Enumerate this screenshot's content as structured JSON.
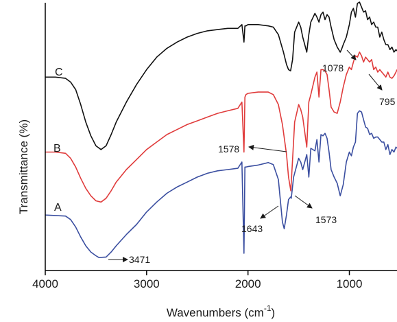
{
  "chart_data": {
    "type": "line",
    "xlabel": "Wavenumbers (cm",
    "xlabel_sup": "-1",
    "xlabel_close": ")",
    "ylabel": "Transmittance (%)",
    "xlim": [
      4000,
      530
    ],
    "x_reversed": true,
    "ylim": [
      0,
      10
    ],
    "y_units": "relative transmittance (offset traces, no y tick labels)",
    "grid": false,
    "legend": "none",
    "x_ticks": [
      4000,
      3000,
      2000,
      1000
    ],
    "x_tick_labels": [
      "4000",
      "3000",
      "2000",
      "1000"
    ],
    "series": [
      {
        "name": "A",
        "color": "#3a4ea0",
        "x": [
          4000,
          3900,
          3800,
          3750,
          3700,
          3650,
          3600,
          3550,
          3500,
          3471,
          3400,
          3350,
          3300,
          3200,
          3100,
          3000,
          2900,
          2800,
          2700,
          2600,
          2500,
          2400,
          2300,
          2200,
          2100,
          2060,
          2040,
          2030,
          2020,
          2000,
          1900,
          1800,
          1750,
          1700,
          1660,
          1643,
          1620,
          1600,
          1580,
          1573,
          1550,
          1500,
          1480,
          1460,
          1440,
          1420,
          1400,
          1380,
          1340,
          1320,
          1300,
          1280,
          1260,
          1240,
          1220,
          1200,
          1180,
          1150,
          1120,
          1090,
          1060,
          1030,
          1000,
          980,
          960,
          940,
          920,
          900,
          880,
          860,
          840,
          820,
          800,
          780,
          760,
          740,
          720,
          700,
          680,
          660,
          640,
          620,
          600,
          580,
          560,
          540,
          530
        ],
        "y": [
          1.78,
          1.76,
          1.74,
          1.6,
          1.3,
          0.9,
          0.55,
          0.3,
          0.15,
          0.08,
          0.1,
          0.3,
          0.55,
          1.0,
          1.4,
          1.9,
          2.3,
          2.65,
          2.9,
          3.1,
          3.3,
          3.45,
          3.55,
          3.6,
          3.65,
          3.9,
          0.25,
          3.7,
          3.7,
          3.72,
          3.78,
          3.88,
          3.8,
          3.2,
          1.5,
          1.23,
          1.8,
          2.4,
          2.5,
          2.45,
          3.3,
          4.05,
          3.9,
          3.6,
          3.9,
          4.2,
          3.3,
          4.45,
          4.35,
          4.8,
          3.9,
          5.0,
          4.95,
          5.05,
          4.85,
          4.3,
          3.6,
          3.3,
          3.05,
          2.55,
          3.0,
          3.9,
          4.3,
          4.15,
          4.5,
          4.7,
          5.85,
          5.95,
          5.9,
          5.6,
          5.3,
          5.25,
          5.0,
          5.05,
          4.85,
          4.9,
          4.9,
          4.8,
          4.7,
          4.7,
          4.4,
          4.6,
          4.2,
          4.4,
          4.3,
          4.5,
          4.45
        ]
      },
      {
        "name": "B",
        "color": "#e03c3c",
        "x": [
          4000,
          3900,
          3800,
          3750,
          3700,
          3650,
          3600,
          3550,
          3500,
          3450,
          3400,
          3350,
          3300,
          3200,
          3100,
          3000,
          2900,
          2800,
          2700,
          2600,
          2500,
          2400,
          2300,
          2200,
          2100,
          2060,
          2040,
          2030,
          2020,
          2000,
          1900,
          1800,
          1750,
          1700,
          1660,
          1620,
          1600,
          1578,
          1560,
          1540,
          1500,
          1480,
          1460,
          1420,
          1400,
          1380,
          1340,
          1320,
          1300,
          1280,
          1260,
          1240,
          1220,
          1200,
          1180,
          1150,
          1120,
          1090,
          1060,
          1030,
          1000,
          980,
          960,
          940,
          920,
          900,
          880,
          860,
          840,
          820,
          800,
          780,
          760,
          740,
          720,
          700,
          680,
          660,
          640,
          620,
          600,
          580,
          560,
          540,
          530
        ],
        "y": [
          4.3,
          4.3,
          4.25,
          4.05,
          3.7,
          3.25,
          2.85,
          2.55,
          2.35,
          2.3,
          2.45,
          2.75,
          3.1,
          3.6,
          4.0,
          4.4,
          4.7,
          5.0,
          5.2,
          5.4,
          5.55,
          5.7,
          5.85,
          5.95,
          6.05,
          6.3,
          4.3,
          6.5,
          6.6,
          6.65,
          6.7,
          6.7,
          6.6,
          6.2,
          5.4,
          4.2,
          3.3,
          2.75,
          4.0,
          5.5,
          6.2,
          6.0,
          5.7,
          4.5,
          6.3,
          6.6,
          7.3,
          7.5,
          6.5,
          7.6,
          7.6,
          7.55,
          7.4,
          6.8,
          6.1,
          5.9,
          5.85,
          6.3,
          6.9,
          7.4,
          7.7,
          7.6,
          7.9,
          8.15,
          8.1,
          8.3,
          8.15,
          7.9,
          8.1,
          8.0,
          7.9,
          8.0,
          7.6,
          7.7,
          7.5,
          7.6,
          7.5,
          7.4,
          7.3,
          7.5,
          7.3,
          7.25,
          7.35,
          7.5,
          7.6
        ]
      },
      {
        "name": "C",
        "color": "#111111",
        "x": [
          4000,
          3900,
          3800,
          3750,
          3700,
          3650,
          3600,
          3550,
          3500,
          3450,
          3400,
          3350,
          3300,
          3200,
          3100,
          3000,
          2900,
          2800,
          2700,
          2600,
          2500,
          2400,
          2300,
          2200,
          2100,
          2060,
          2040,
          2030,
          2020,
          2000,
          1900,
          1800,
          1750,
          1700,
          1650,
          1620,
          1600,
          1580,
          1560,
          1540,
          1500,
          1480,
          1460,
          1420,
          1400,
          1380,
          1340,
          1320,
          1300,
          1280,
          1260,
          1240,
          1220,
          1200,
          1180,
          1150,
          1120,
          1090,
          1078,
          1060,
          1030,
          1000,
          980,
          960,
          940,
          920,
          900,
          880,
          860,
          840,
          820,
          800,
          780,
          760,
          740,
          720,
          700,
          680,
          660,
          640,
          620,
          600,
          580,
          560,
          540,
          530
        ],
        "y": [
          7.3,
          7.3,
          7.25,
          7.1,
          6.8,
          6.2,
          5.5,
          4.95,
          4.55,
          4.4,
          4.55,
          5.0,
          5.5,
          6.3,
          7.0,
          7.6,
          8.1,
          8.45,
          8.7,
          8.9,
          9.05,
          9.15,
          9.2,
          9.25,
          9.25,
          9.4,
          8.7,
          9.35,
          9.35,
          9.4,
          9.4,
          9.35,
          9.3,
          9.0,
          8.3,
          7.8,
          7.6,
          7.55,
          8.0,
          9.1,
          9.5,
          9.3,
          8.9,
          8.3,
          9.0,
          9.5,
          9.85,
          9.7,
          9.5,
          9.8,
          9.9,
          9.6,
          9.8,
          9.7,
          9.3,
          8.8,
          8.5,
          8.3,
          8.4,
          8.6,
          8.9,
          9.4,
          9.9,
          10.05,
          9.7,
          10.25,
          10.3,
          10.1,
          9.9,
          9.95,
          9.6,
          9.7,
          9.4,
          9.5,
          9.3,
          9.3,
          8.9,
          9.1,
          8.8,
          8.6,
          8.6,
          8.4,
          8.5,
          8.3,
          8.4,
          8.35
        ]
      }
    ],
    "annotations": [
      {
        "text": "3471",
        "x": 3471,
        "series": "A"
      },
      {
        "text": "1643",
        "x": 1643,
        "series": "A"
      },
      {
        "text": "1573",
        "x": 1573,
        "series": "A"
      },
      {
        "text": "1578",
        "x": 1578,
        "series": "B"
      },
      {
        "text": "1078",
        "x": 1078,
        "series": "C"
      },
      {
        "text": "795",
        "x": 795,
        "series": "B"
      }
    ]
  }
}
